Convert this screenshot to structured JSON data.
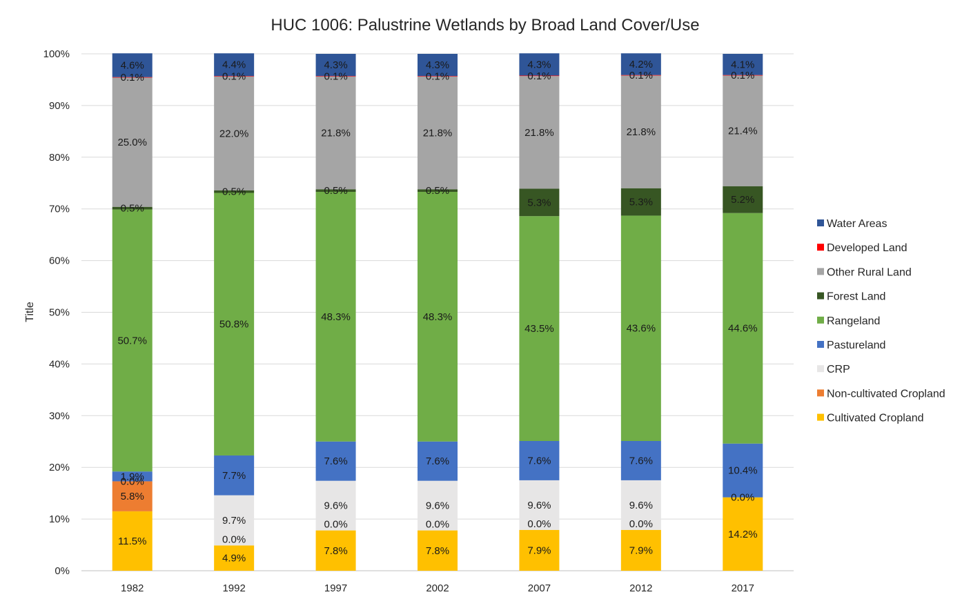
{
  "chart_data": {
    "type": "bar",
    "stacked": true,
    "percent_stacked": true,
    "title": "HUC 1006: Palustrine Wetlands by Broad Land Cover/Use",
    "xlabel": "",
    "ylabel": "Title",
    "ylim": [
      0,
      100
    ],
    "y_ticks": [
      "0%",
      "10%",
      "20%",
      "30%",
      "40%",
      "50%",
      "60%",
      "70%",
      "80%",
      "90%",
      "100%"
    ],
    "grid": true,
    "legend_position": "right",
    "categories": [
      "1982",
      "1992",
      "1997",
      "2002",
      "2007",
      "2012",
      "2017"
    ],
    "series": [
      {
        "name": "Cultivated Cropland",
        "color": "#FFC000",
        "values": [
          11.5,
          4.9,
          7.8,
          7.8,
          7.9,
          7.9,
          14.2
        ]
      },
      {
        "name": "Non-cultivated Cropland",
        "color": "#ED7D31",
        "values": [
          5.8,
          0.0,
          0.0,
          0.0,
          0.0,
          0.0,
          0.0
        ]
      },
      {
        "name": "CRP",
        "color": "#E7E6E6",
        "values": [
          0.0,
          9.7,
          9.6,
          9.6,
          9.6,
          9.6,
          0.0
        ]
      },
      {
        "name": "Pastureland",
        "color": "#4472C4",
        "values": [
          1.9,
          7.7,
          7.6,
          7.6,
          7.6,
          7.6,
          10.4
        ]
      },
      {
        "name": "Rangeland",
        "color": "#70AD47",
        "values": [
          50.7,
          50.8,
          48.3,
          48.3,
          43.5,
          43.6,
          44.6
        ]
      },
      {
        "name": "Forest Land",
        "color": "#375623",
        "values": [
          0.5,
          0.5,
          0.5,
          0.5,
          5.3,
          5.3,
          5.2
        ]
      },
      {
        "name": "Other Rural Land",
        "color": "#A5A5A5",
        "values": [
          25.0,
          22.0,
          21.8,
          21.8,
          21.8,
          21.8,
          21.4
        ]
      },
      {
        "name": "Developed Land",
        "color": "#FF0000",
        "values": [
          0.1,
          0.1,
          0.1,
          0.1,
          0.1,
          0.1,
          0.1
        ]
      },
      {
        "name": "Water Areas",
        "color": "#2F5597",
        "values": [
          4.6,
          4.4,
          4.3,
          4.3,
          4.3,
          4.2,
          4.1
        ]
      }
    ],
    "data_labels": [
      [
        "11.5%",
        "5.8%",
        "0.0%",
        "1.9%",
        "50.7%",
        "0.5%",
        "25.0%",
        "0.1%",
        "4.6%"
      ],
      [
        "4.9%",
        "",
        "9.7%",
        "7.7%",
        "50.8%",
        "0.5%",
        "22.0%",
        "0.1%",
        "4.4%"
      ],
      [
        "7.8%",
        "",
        "9.6%",
        "7.6%",
        "48.3%",
        "0.5%",
        "21.8%",
        "0.1%",
        "4.3%"
      ],
      [
        "7.8%",
        "",
        "9.6%",
        "7.6%",
        "48.3%",
        "0.5%",
        "21.8%",
        "0.1%",
        "4.3%"
      ],
      [
        "7.9%",
        "",
        "9.6%",
        "7.6%",
        "43.5%",
        "5.3%",
        "21.8%",
        "0.1%",
        "4.3%"
      ],
      [
        "7.9%",
        "",
        "9.6%",
        "7.6%",
        "43.6%",
        "5.3%",
        "21.8%",
        "0.1%",
        "4.2%"
      ],
      [
        "14.2%",
        "",
        "0.0%",
        "10.4%",
        "44.6%",
        "5.2%",
        "21.4%",
        "0.1%",
        "4.1%"
      ]
    ],
    "extra_zero_labels": [
      "",
      "0.0%",
      "0.0%",
      "0.0%",
      "0.0%",
      "0.0%",
      ""
    ]
  }
}
